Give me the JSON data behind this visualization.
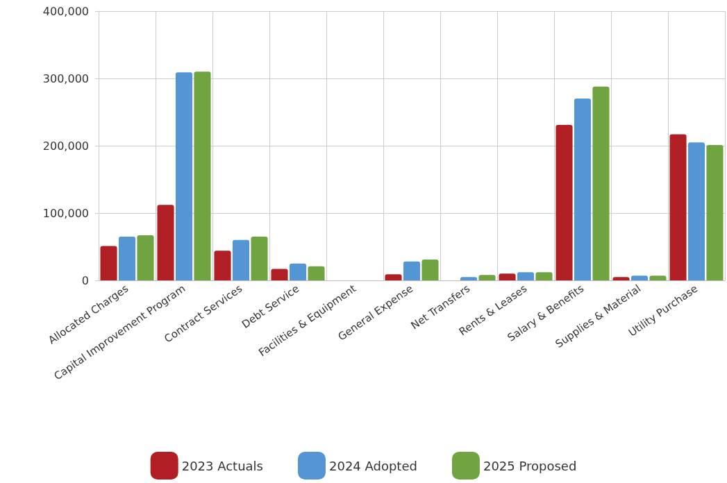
{
  "chart_data": {
    "type": "bar",
    "categories": [
      "Allocated Charges",
      "Capital Improvement Program",
      "Contract Services",
      "Debt Service",
      "Facilities & Equipment",
      "General Expense",
      "Net Transfers",
      "Rents & Leases",
      "Salary & Benefits",
      "Supplies & Material",
      "Utility Purchase"
    ],
    "series": [
      {
        "name": "2023 Actuals",
        "color": "#b01f24",
        "values": [
          51000,
          112000,
          44000,
          17000,
          0,
          9000,
          0,
          10000,
          231000,
          5000,
          217000
        ]
      },
      {
        "name": "2024 Adopted",
        "color": "#5396d3",
        "values": [
          65000,
          309000,
          60000,
          25000,
          0,
          28000,
          5000,
          12000,
          270000,
          7000,
          205000
        ]
      },
      {
        "name": "2025 Proposed",
        "color": "#70a441",
        "values": [
          67000,
          310000,
          65000,
          21000,
          0,
          31000,
          8000,
          12000,
          288000,
          7000,
          201000
        ]
      }
    ],
    "ylim": [
      0,
      400000
    ],
    "yticks": [
      0,
      {
        "value": 100000,
        "label": "100,000"
      },
      {
        "value": 200000,
        "label": "200,000"
      },
      {
        "value": 300000,
        "label": "300,000"
      },
      {
        "value": 400000,
        "label": "400,000"
      }
    ],
    "grid": true,
    "legend": "bottom"
  }
}
